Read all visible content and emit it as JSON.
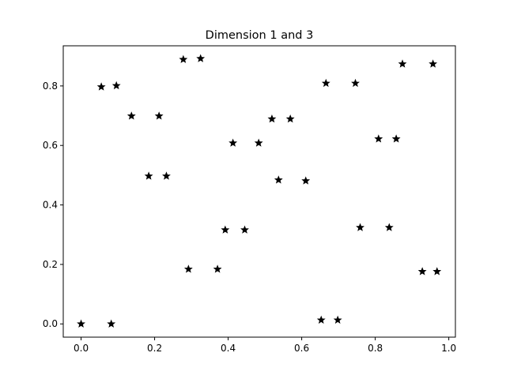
{
  "chart_data": {
    "type": "scatter",
    "title": "Dimension 1 and 3",
    "xlabel": "",
    "ylabel": "",
    "xlim": [
      -0.0485,
      1.018
    ],
    "ylim": [
      -0.0445,
      0.935
    ],
    "xticks": [
      "0.0",
      "0.2",
      "0.4",
      "0.6",
      "0.8",
      "1.0"
    ],
    "yticks": [
      "0.0",
      "0.2",
      "0.4",
      "0.6",
      "0.8"
    ],
    "grid": false,
    "marker": "star",
    "marker_color": "#000000",
    "points": [
      {
        "x": 0.0,
        "y": 0.0
      },
      {
        "x": 0.082,
        "y": 0.0
      },
      {
        "x": 0.055,
        "y": 0.797
      },
      {
        "x": 0.096,
        "y": 0.801
      },
      {
        "x": 0.137,
        "y": 0.699
      },
      {
        "x": 0.212,
        "y": 0.699
      },
      {
        "x": 0.184,
        "y": 0.497
      },
      {
        "x": 0.232,
        "y": 0.497
      },
      {
        "x": 0.278,
        "y": 0.889
      },
      {
        "x": 0.325,
        "y": 0.892
      },
      {
        "x": 0.292,
        "y": 0.184
      },
      {
        "x": 0.371,
        "y": 0.184
      },
      {
        "x": 0.392,
        "y": 0.316
      },
      {
        "x": 0.445,
        "y": 0.316
      },
      {
        "x": 0.413,
        "y": 0.608
      },
      {
        "x": 0.483,
        "y": 0.608
      },
      {
        "x": 0.519,
        "y": 0.689
      },
      {
        "x": 0.569,
        "y": 0.689
      },
      {
        "x": 0.537,
        "y": 0.484
      },
      {
        "x": 0.611,
        "y": 0.481
      },
      {
        "x": 0.653,
        "y": 0.013
      },
      {
        "x": 0.698,
        "y": 0.013
      },
      {
        "x": 0.666,
        "y": 0.809
      },
      {
        "x": 0.746,
        "y": 0.809
      },
      {
        "x": 0.759,
        "y": 0.324
      },
      {
        "x": 0.838,
        "y": 0.324
      },
      {
        "x": 0.809,
        "y": 0.622
      },
      {
        "x": 0.857,
        "y": 0.622
      },
      {
        "x": 0.874,
        "y": 0.874
      },
      {
        "x": 0.957,
        "y": 0.874
      },
      {
        "x": 0.928,
        "y": 0.176
      },
      {
        "x": 0.968,
        "y": 0.176
      }
    ]
  }
}
